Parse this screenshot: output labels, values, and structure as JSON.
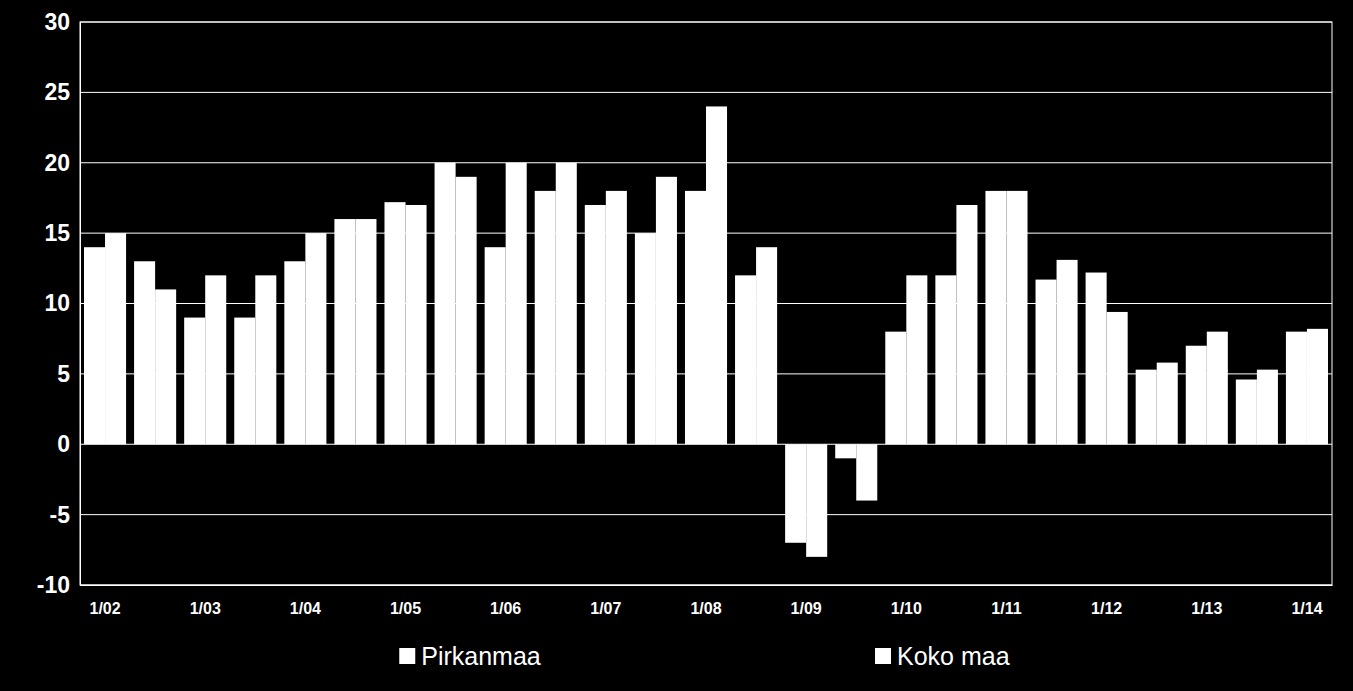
{
  "chart_data": {
    "type": "bar",
    "categories": [
      "1/02",
      null,
      "1/03",
      null,
      "1/04",
      null,
      "1/05",
      null,
      "1/06",
      null,
      "1/07",
      null,
      "1/08",
      null,
      "1/09",
      null,
      "1/10",
      null,
      "1/11",
      null,
      "1/12",
      null,
      "1/13",
      null,
      "1/14"
    ],
    "series": [
      {
        "name": "Pirkanmaa",
        "color": "#ffffff",
        "values": [
          14,
          13,
          9,
          9,
          13,
          16,
          17.2,
          20,
          14,
          18,
          17,
          15,
          18,
          12,
          -7,
          -1,
          8,
          12,
          18,
          11.7,
          12.2,
          5.3,
          7,
          4.6,
          8
        ]
      },
      {
        "name": "Koko maa",
        "color": "#ffffff",
        "values": [
          15,
          11,
          12,
          12,
          15,
          16,
          17,
          19,
          20,
          20,
          18,
          19,
          24,
          14,
          -8,
          -4,
          12,
          17,
          18,
          13.1,
          9.4,
          5.8,
          8,
          5.3,
          8.2
        ]
      }
    ],
    "ylim": [
      -10,
      30
    ],
    "yticks": [
      -10,
      -5,
      0,
      5,
      10,
      15,
      20,
      25,
      30
    ],
    "grid": true,
    "legend": "bottom"
  }
}
